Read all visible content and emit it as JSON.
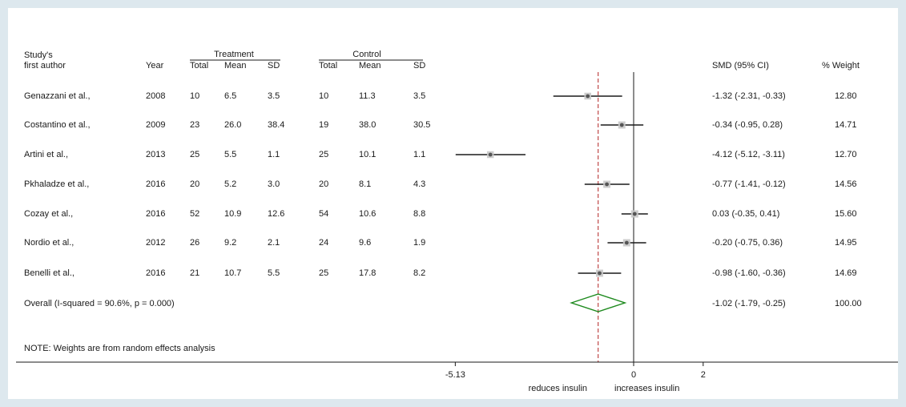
{
  "headers": {
    "study_line1": "Study's",
    "study_line2": "first author",
    "year": "Year",
    "treatment": "Treatment",
    "control": "Control",
    "total": "Total",
    "mean": "Mean",
    "sd": "SD",
    "smd": "SMD (95% CI)",
    "weight": "% Weight"
  },
  "rows": [
    {
      "author": "Genazzani et al.,",
      "year": "2008",
      "t_total": "10",
      "t_mean": "6.5",
      "t_sd": "3.5",
      "c_total": "10",
      "c_mean": "11.3",
      "c_sd": "3.5",
      "ci_text": "-1.32 (-2.31, -0.33)",
      "weight": "12.80"
    },
    {
      "author": "Costantino et al.,",
      "year": "2009",
      "t_total": "23",
      "t_mean": "26.0",
      "t_sd": "38.4",
      "c_total": "19",
      "c_mean": "38.0",
      "c_sd": "30.5",
      "ci_text": "-0.34 (-0.95, 0.28)",
      "weight": "14.71"
    },
    {
      "author": "Artini et al.,",
      "year": "2013",
      "t_total": "25",
      "t_mean": "5.5",
      "t_sd": "1.1",
      "c_total": "25",
      "c_mean": "10.1",
      "c_sd": "1.1",
      "ci_text": "-4.12 (-5.12, -3.11)",
      "weight": "12.70"
    },
    {
      "author": "Pkhaladze et al.,",
      "year": "2016",
      "t_total": "20",
      "t_mean": "5.2",
      "t_sd": "3.0",
      "c_total": "20",
      "c_mean": "8.1",
      "c_sd": "4.3",
      "ci_text": "-0.77 (-1.41, -0.12)",
      "weight": "14.56"
    },
    {
      "author": "Cozay et al.,",
      "year": "2016",
      "t_total": "52",
      "t_mean": "10.9",
      "t_sd": "12.6",
      "c_total": "54",
      "c_mean": "10.6",
      "c_sd": "8.8",
      "ci_text": "0.03 (-0.35, 0.41)",
      "weight": "15.60"
    },
    {
      "author": "Nordio et al.,",
      "year": "2012",
      "t_total": "26",
      "t_mean": "9.2",
      "t_sd": "2.1",
      "c_total": "24",
      "c_mean": "9.6",
      "c_sd": "1.9",
      "ci_text": "-0.20 (-0.75, 0.36)",
      "weight": "14.95"
    },
    {
      "author": "Benelli et al.,",
      "year": "2016",
      "t_total": "21",
      "t_mean": "10.7",
      "t_sd": "5.5",
      "c_total": "25",
      "c_mean": "17.8",
      "c_sd": "8.2",
      "ci_text": "-0.98 (-1.60, -0.36)",
      "weight": "14.69"
    }
  ],
  "overall": {
    "label": "Overall  (I-squared = 90.6%, p = 0.000)",
    "ci_text": "-1.02 (-1.79, -0.25)",
    "weight": "100.00"
  },
  "note": "NOTE: Weights are from random effects analysis",
  "axis": {
    "tick_labels": [
      "-5.13",
      "0",
      "2"
    ],
    "left_label": "reduces insulin",
    "right_label": "increases insulin"
  },
  "colors": {
    "diamond": "#1e8a1e",
    "overall_line": "#b22222",
    "marker": "#555555"
  },
  "chart_data": {
    "type": "forest",
    "measure": "SMD (95% CI)",
    "xlim": [
      -5.13,
      2
    ],
    "ticks": [
      -5.13,
      0,
      2
    ],
    "xlabel_left": "reduces insulin",
    "xlabel_right": "increases insulin",
    "null_line": 0,
    "studies": [
      {
        "name": "Genazzani et al.,",
        "smd": -1.32,
        "lower": -2.31,
        "upper": -0.33,
        "weight": 12.8
      },
      {
        "name": "Costantino et al.,",
        "smd": -0.34,
        "lower": -0.95,
        "upper": 0.28,
        "weight": 14.71
      },
      {
        "name": "Artini et al.,",
        "smd": -4.12,
        "lower": -5.12,
        "upper": -3.11,
        "weight": 12.7
      },
      {
        "name": "Pkhaladze et al.,",
        "smd": -0.77,
        "lower": -1.41,
        "upper": -0.12,
        "weight": 14.56
      },
      {
        "name": "Cozay et al.,",
        "smd": 0.03,
        "lower": -0.35,
        "upper": 0.41,
        "weight": 15.6
      },
      {
        "name": "Nordio et al.,",
        "smd": -0.2,
        "lower": -0.75,
        "upper": 0.36,
        "weight": 14.95
      },
      {
        "name": "Benelli et al.,",
        "smd": -0.98,
        "lower": -1.6,
        "upper": -0.36,
        "weight": 14.69
      }
    ],
    "overall": {
      "smd": -1.02,
      "lower": -1.79,
      "upper": -0.25,
      "weight": 100.0,
      "i_squared": 90.6,
      "p": 0.0
    }
  }
}
